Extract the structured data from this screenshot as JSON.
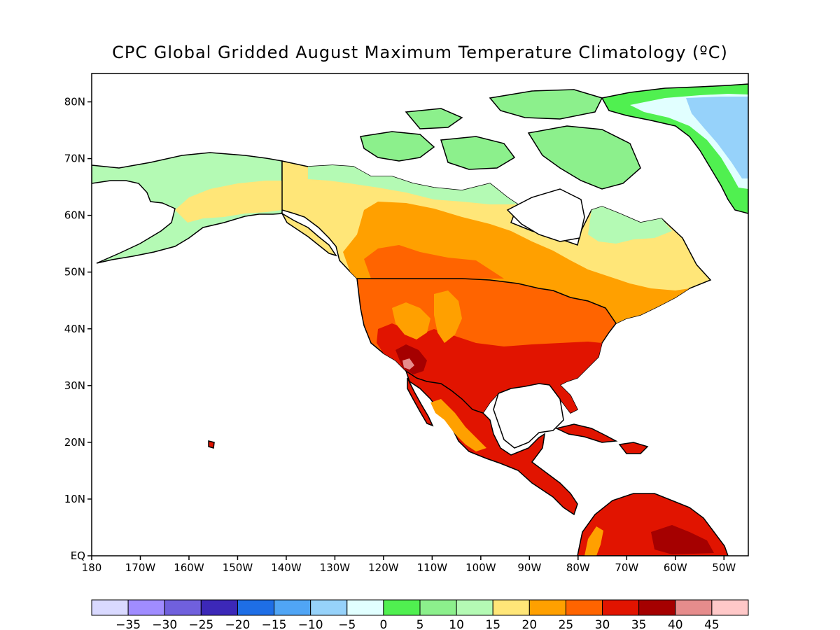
{
  "title": "CPC Global Gridded August Maximum Temperature Climatology (ºC)",
  "map": {
    "projection": "lat-lon",
    "lon_range": [
      -180,
      -45
    ],
    "lat_range": [
      0,
      85
    ],
    "lat_ticks": [
      {
        "value": 80,
        "label": "80N"
      },
      {
        "value": 70,
        "label": "70N"
      },
      {
        "value": 60,
        "label": "60N"
      },
      {
        "value": 50,
        "label": "50N"
      },
      {
        "value": 40,
        "label": "40N"
      },
      {
        "value": 30,
        "label": "30N"
      },
      {
        "value": 20,
        "label": "20N"
      },
      {
        "value": 10,
        "label": "10N"
      },
      {
        "value": 0,
        "label": "EQ"
      }
    ],
    "lon_ticks": [
      {
        "value": -180,
        "label": "180"
      },
      {
        "value": -170,
        "label": "170W"
      },
      {
        "value": -160,
        "label": "160W"
      },
      {
        "value": -150,
        "label": "150W"
      },
      {
        "value": -140,
        "label": "140W"
      },
      {
        "value": -130,
        "label": "130W"
      },
      {
        "value": -120,
        "label": "120W"
      },
      {
        "value": -110,
        "label": "110W"
      },
      {
        "value": -100,
        "label": "100W"
      },
      {
        "value": -90,
        "label": "90W"
      },
      {
        "value": -80,
        "label": "80W"
      },
      {
        "value": -70,
        "label": "70W"
      },
      {
        "value": -60,
        "label": "60W"
      },
      {
        "value": -50,
        "label": "50W"
      }
    ]
  },
  "colorbar": {
    "colors": [
      "#d9d9ff",
      "#a08cff",
      "#7060dd",
      "#3c28b8",
      "#1e6ee6",
      "#50a5f5",
      "#96d2fa",
      "#e1ffff",
      "#50f050",
      "#8cf08c",
      "#b4fab4",
      "#ffe678",
      "#ffa000",
      "#ff6400",
      "#e11400",
      "#a50000",
      "#e68c8c",
      "#ffc8c8"
    ],
    "labels": [
      "-35",
      "-30",
      "-25",
      "-20",
      "-15",
      "-10",
      "-5",
      "0",
      "5",
      "10",
      "15",
      "20",
      "25",
      "30",
      "35",
      "40",
      "45"
    ]
  }
}
